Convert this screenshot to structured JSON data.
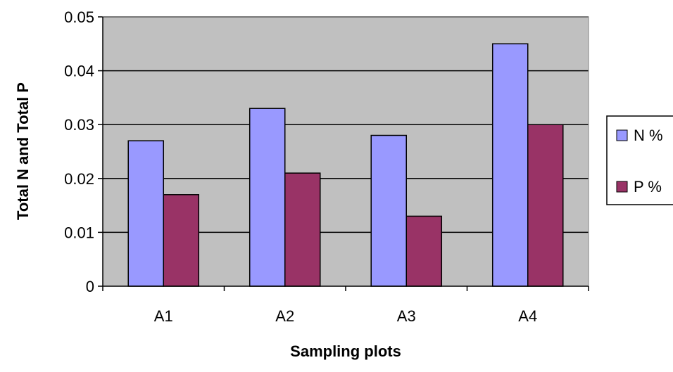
{
  "chart_data": {
    "type": "bar",
    "title": "",
    "xlabel": "Sampling plots",
    "ylabel": "Total N and Total P",
    "categories": [
      "A1",
      "A2",
      "A3",
      "A4"
    ],
    "series": [
      {
        "name": "N %",
        "values": [
          0.027,
          0.033,
          0.028,
          0.045
        ],
        "color": "#9999ff"
      },
      {
        "name": "P %",
        "values": [
          0.017,
          0.021,
          0.013,
          0.03
        ],
        "color": "#993366"
      }
    ],
    "ylim": [
      0,
      0.05
    ],
    "yticks": [
      "0",
      "0.01",
      "0.02",
      "0.03",
      "0.04",
      "0.05"
    ],
    "grid": true,
    "legend_position": "right",
    "plot_background": "#c0c0c0"
  }
}
